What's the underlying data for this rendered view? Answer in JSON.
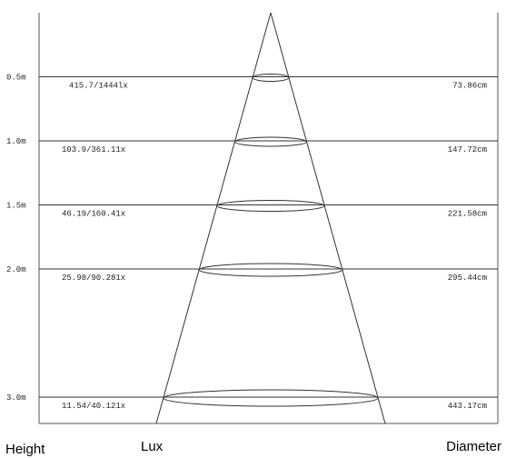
{
  "column_labels": {
    "height": "Height",
    "lux": "Lux",
    "diameter": "Diameter"
  },
  "rows": [
    {
      "height": "0.5m",
      "lux": "415.7/1444lx",
      "diameter": "73.86cm",
      "height_m": 0.5
    },
    {
      "height": "1.0m",
      "lux": "103.9/361.11x",
      "diameter": "147.72cm",
      "height_m": 1.0
    },
    {
      "height": "1.5m",
      "lux": "46.19/160.41x",
      "diameter": "221.58cm",
      "height_m": 1.5
    },
    {
      "height": "2.0m",
      "lux": "25.98/90.281x",
      "diameter": "295.44cm",
      "height_m": 2.0
    },
    {
      "height": "3.0m",
      "lux": "11.54/40.121x",
      "diameter": "443.17cm",
      "height_m": 3.0
    }
  ],
  "colors": {
    "line": "#333333",
    "frame": "#555555",
    "text": "#222222"
  }
}
